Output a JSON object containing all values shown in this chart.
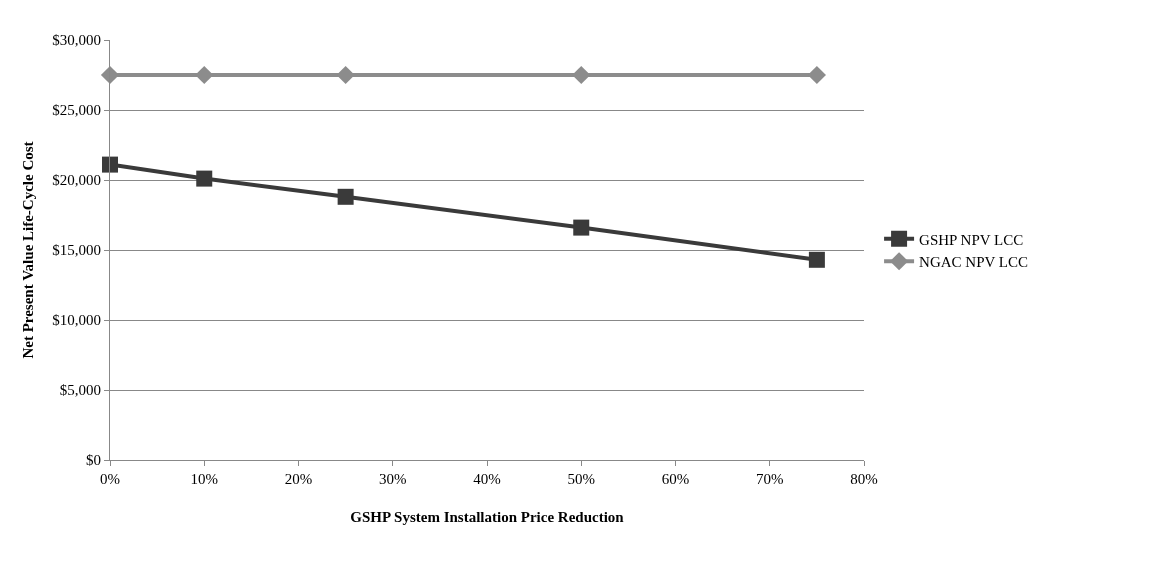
{
  "chart_data": {
    "type": "line",
    "xlabel": "GSHP System Installation Price Reduction",
    "ylabel": "Net Present Value Life-Cycle Cost",
    "x": [
      0,
      10,
      25,
      50,
      75
    ],
    "series": [
      {
        "name": "GSHP NPV LCC",
        "color": "#3a3a3a",
        "marker": "square",
        "values": [
          21100,
          20100,
          18800,
          16600,
          14300
        ]
      },
      {
        "name": "NGAC NPV LCC",
        "color": "#8c8c8c",
        "marker": "diamond",
        "values": [
          27500,
          27500,
          27500,
          27500,
          27500
        ]
      }
    ],
    "xlim": [
      0,
      80
    ],
    "xticks": [
      {
        "value": 0,
        "label": "0%"
      },
      {
        "value": 10,
        "label": "10%"
      },
      {
        "value": 20,
        "label": "20%"
      },
      {
        "value": 30,
        "label": "30%"
      },
      {
        "value": 40,
        "label": "40%"
      },
      {
        "value": 50,
        "label": "50%"
      },
      {
        "value": 60,
        "label": "60%"
      },
      {
        "value": 70,
        "label": "70%"
      },
      {
        "value": 80,
        "label": "80%"
      }
    ],
    "ylim": [
      0,
      30000
    ],
    "yticks": [
      {
        "value": 0,
        "label": "$0"
      },
      {
        "value": 5000,
        "label": "$5,000"
      },
      {
        "value": 10000,
        "label": "$10,000"
      },
      {
        "value": 15000,
        "label": "$15,000"
      },
      {
        "value": 20000,
        "label": "$20,000"
      },
      {
        "value": 25000,
        "label": "$25,000"
      },
      {
        "value": 30000,
        "label": "$30,000"
      }
    ],
    "grid": "y",
    "legend": "right",
    "line_style": "solid"
  }
}
